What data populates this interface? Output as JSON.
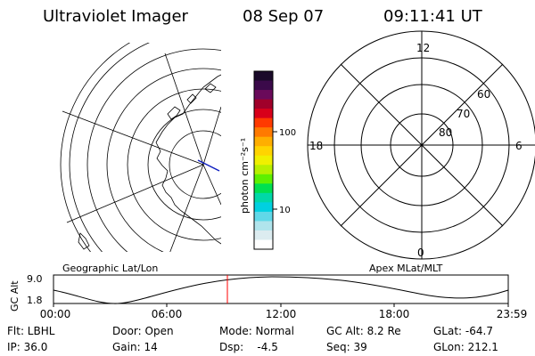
{
  "header": {
    "instrument": "Ultraviolet Imager",
    "date": "08 Sep 07",
    "time": "09:11:41 UT"
  },
  "colorbar": {
    "unit_label": "photon cm⁻²s⁻¹",
    "tick_100": "100",
    "tick_10": "10",
    "colors": [
      "#1a0a2a",
      "#3b0a4a",
      "#6a0a5a",
      "#a0002a",
      "#d8001a",
      "#ff3a00",
      "#ff7a00",
      "#ffae00",
      "#ffd400",
      "#f0f000",
      "#b8f000",
      "#5ef000",
      "#00e050",
      "#00d8a8",
      "#00d0e0",
      "#60d8e8",
      "#b0e4ec",
      "#dcecf0",
      "#ffffff"
    ]
  },
  "left_map": {
    "caption": "Geographic Lat/Lon"
  },
  "right_map": {
    "caption": "Apex MLat/MLT",
    "mlt_top": "12",
    "mlt_bottom": "0",
    "mlt_left": "18",
    "mlt_right": "6",
    "lat_60": "60",
    "lat_70": "70",
    "lat_80": "80"
  },
  "timeline": {
    "ylabel": "GC Alt",
    "ytick_high": "9.0",
    "ytick_low": "1.8",
    "x_ticks": [
      "00:00",
      "06:00",
      "12:00",
      "18:00",
      "23:59"
    ],
    "current_marker_color": "#ff0000"
  },
  "status": {
    "filter": "Flt: LBHL",
    "door": "Door: Open",
    "mode": "Mode: Normal",
    "gc_alt": "GC Alt: 8.2 Re",
    "glat": "GLat: -64.7",
    "ip": "IP: 36.0",
    "gain": "Gain: 14",
    "dsp": "Dsp:    -4.5",
    "seq": "Seq: 39",
    "glon": "GLon: 212.1"
  }
}
